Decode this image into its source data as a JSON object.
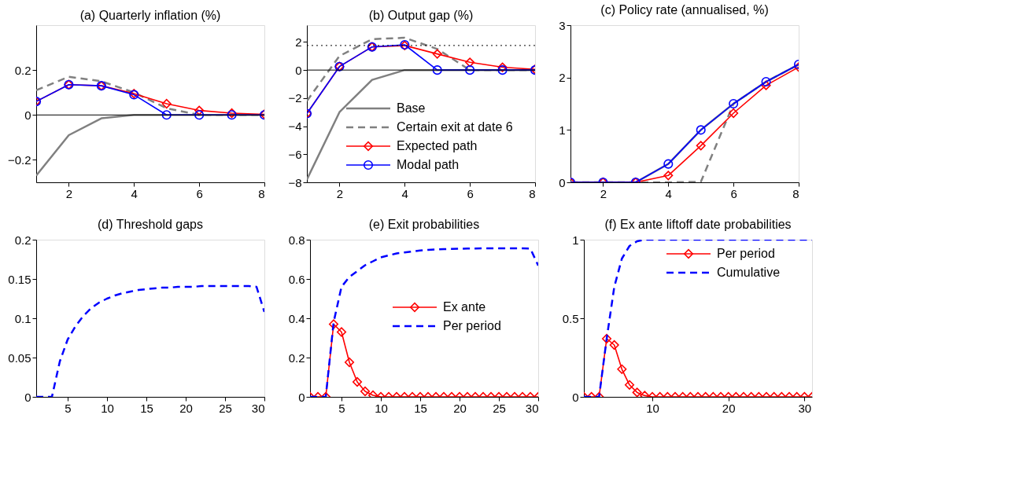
{
  "chart_data": [
    {
      "type": "line",
      "title": "(a) Quarterly inflation (%)",
      "x": [
        1,
        2,
        3,
        4,
        5,
        6,
        7,
        8
      ],
      "xlim": [
        1,
        8
      ],
      "xticks": [
        2,
        4,
        6,
        8
      ],
      "ylim": [
        -0.3,
        0.4
      ],
      "yticks": [
        {
          "value": -0.2,
          "label": "−0.2"
        },
        0,
        0.2
      ],
      "ref_lines": [
        {
          "axis": "y",
          "value": 0,
          "color": "#000000",
          "line_style": "solid"
        }
      ],
      "series": [
        {
          "color": "#808080",
          "line_style": "solid",
          "marker": "none",
          "values": [
            -0.27,
            -0.09,
            -0.015,
            0,
            0,
            0,
            0,
            0
          ]
        },
        {
          "color": "#808080",
          "line_style": "dashed",
          "marker": "none",
          "values": [
            0.11,
            0.17,
            0.15,
            0.1,
            0.03,
            0,
            0,
            0
          ]
        },
        {
          "color": "#ff0000",
          "line_style": "solid",
          "marker": "diamond",
          "values": [
            0.06,
            0.135,
            0.13,
            0.095,
            0.05,
            0.02,
            0.008,
            0.003
          ]
        },
        {
          "color": "#0000ff",
          "line_style": "solid",
          "marker": "circle",
          "values": [
            0.06,
            0.135,
            0.13,
            0.09,
            0,
            0,
            0,
            0
          ]
        }
      ]
    },
    {
      "type": "line",
      "title": "(b) Output gap (%)",
      "x": [
        1,
        2,
        3,
        4,
        5,
        6,
        7,
        8
      ],
      "xlim": [
        1,
        8
      ],
      "xticks": [
        2,
        4,
        6,
        8
      ],
      "ylim": [
        -8,
        3.2
      ],
      "yticks": [
        {
          "value": -8,
          "label": "−8"
        },
        {
          "value": -6,
          "label": "−6"
        },
        {
          "value": -4,
          "label": "−4"
        },
        {
          "value": -2,
          "label": "−2"
        },
        0,
        2
      ],
      "legend": "bottom right",
      "ref_lines": [
        {
          "axis": "y",
          "value": 0,
          "color": "#000000",
          "line_style": "solid"
        },
        {
          "axis": "y",
          "value": 1.75,
          "color": "#000000",
          "line_style": "dotted"
        }
      ],
      "series": [
        {
          "name": "Base",
          "color": "#808080",
          "line_style": "solid",
          "marker": "none",
          "values": [
            -7.8,
            -3,
            -0.7,
            0,
            0,
            0,
            0,
            0
          ]
        },
        {
          "name": "Certain exit at date 6",
          "color": "#808080",
          "line_style": "dashed",
          "marker": "none",
          "values": [
            -2.2,
            1.0,
            2.2,
            2.3,
            1.5,
            0,
            0,
            0
          ]
        },
        {
          "name": "Expected path",
          "color": "#ff0000",
          "line_style": "solid",
          "marker": "diamond",
          "values": [
            -3.1,
            0.25,
            1.65,
            1.75,
            1.15,
            0.55,
            0.2,
            0.05
          ]
        },
        {
          "name": "Modal path",
          "color": "#0000ff",
          "line_style": "solid",
          "marker": "circle",
          "values": [
            -3.1,
            0.25,
            1.65,
            1.8,
            0,
            0,
            0,
            0
          ]
        }
      ]
    },
    {
      "type": "line",
      "title": "(c) Policy rate (annualised, %)",
      "x": [
        1,
        2,
        3,
        4,
        5,
        6,
        7,
        8
      ],
      "xlim": [
        1,
        8
      ],
      "xticks": [
        2,
        4,
        6,
        8
      ],
      "ylim": [
        0,
        3
      ],
      "yticks": [
        0,
        1,
        2,
        3
      ],
      "series": [
        {
          "color": "#808080",
          "line_style": "solid",
          "marker": "none",
          "values": [
            0,
            0,
            0,
            0.35,
            1.0,
            1.5,
            1.92,
            2.25
          ]
        },
        {
          "color": "#808080",
          "line_style": "dashed",
          "marker": "none",
          "values": [
            0,
            0,
            0,
            0,
            0.01,
            1.5,
            1.92,
            2.25
          ]
        },
        {
          "color": "#ff0000",
          "line_style": "solid",
          "marker": "diamond",
          "values": [
            0,
            0,
            0,
            0.13,
            0.7,
            1.32,
            1.85,
            2.2
          ]
        },
        {
          "color": "#0000ff",
          "line_style": "solid",
          "marker": "circle",
          "values": [
            0,
            0,
            0,
            0.35,
            1.0,
            1.5,
            1.92,
            2.25
          ]
        }
      ]
    },
    {
      "type": "line",
      "title": "(d) Threshold gaps",
      "x": [
        1,
        2,
        3,
        4,
        5,
        6,
        7,
        8,
        9,
        10,
        11,
        12,
        13,
        14,
        15,
        16,
        17,
        18,
        19,
        20,
        21,
        22,
        23,
        24,
        25,
        26,
        27,
        28,
        29,
        30
      ],
      "xlim": [
        1,
        30
      ],
      "xticks": [
        5,
        10,
        15,
        20,
        25,
        30
      ],
      "ylim": [
        0,
        0.2
      ],
      "yticks": [
        0,
        0.05,
        0.1,
        0.15,
        0.2
      ],
      "series": [
        {
          "color": "#0000ff",
          "line_style": "dashed",
          "marker": "none",
          "values": [
            0,
            0,
            0,
            0.045,
            0.073,
            0.09,
            0.103,
            0.113,
            0.12,
            0.125,
            0.129,
            0.132,
            0.134,
            0.136,
            0.137,
            0.138,
            0.139,
            0.139,
            0.14,
            0.14,
            0.14,
            0.141,
            0.141,
            0.141,
            0.141,
            0.141,
            0.141,
            0.141,
            0.14,
            0.108
          ]
        }
      ]
    },
    {
      "type": "line",
      "title": "(e) Exit probabilities",
      "x": [
        1,
        2,
        3,
        4,
        5,
        6,
        7,
        8,
        9,
        10,
        11,
        12,
        13,
        14,
        15,
        16,
        17,
        18,
        19,
        20,
        21,
        22,
        23,
        24,
        25,
        26,
        27,
        28,
        29,
        30
      ],
      "xlim": [
        1,
        30
      ],
      "xticks": [
        5,
        10,
        15,
        20,
        25,
        30
      ],
      "ylim": [
        0,
        0.8
      ],
      "yticks": [
        0,
        0.2,
        0.4,
        0.6,
        0.8
      ],
      "legend": "right",
      "series": [
        {
          "name": "Ex ante",
          "color": "#ff0000",
          "line_style": "solid",
          "marker": "diamond",
          "values": [
            0,
            0,
            0,
            0.37,
            0.33,
            0.176,
            0.076,
            0.028,
            0.008,
            0,
            0,
            0,
            0,
            0,
            0,
            0,
            0,
            0,
            0,
            0,
            0,
            0,
            0,
            0,
            0,
            0,
            0,
            0,
            0,
            0
          ]
        },
        {
          "name": "Per period",
          "color": "#0000ff",
          "line_style": "dashed",
          "marker": "none",
          "values": [
            0,
            0,
            0,
            0.38,
            0.56,
            0.61,
            0.64,
            0.67,
            0.69,
            0.71,
            0.72,
            0.73,
            0.735,
            0.74,
            0.745,
            0.748,
            0.75,
            0.752,
            0.753,
            0.754,
            0.755,
            0.755,
            0.756,
            0.756,
            0.756,
            0.756,
            0.756,
            0.756,
            0.755,
            0.668
          ]
        }
      ]
    },
    {
      "type": "line",
      "title": "(f) Ex ante liftoff date probabilities",
      "x": [
        1,
        2,
        3,
        4,
        5,
        6,
        7,
        8,
        9,
        10,
        11,
        12,
        13,
        14,
        15,
        16,
        17,
        18,
        19,
        20,
        21,
        22,
        23,
        24,
        25,
        26,
        27,
        28,
        29,
        30,
        31
      ],
      "xlim": [
        1,
        31
      ],
      "xticks": [
        10,
        20,
        30
      ],
      "ylim": [
        0,
        1
      ],
      "yticks": [
        0,
        0.5,
        1
      ],
      "legend": "top right",
      "series": [
        {
          "name": "Per period",
          "color": "#ff0000",
          "line_style": "solid",
          "marker": "diamond",
          "values": [
            0,
            0,
            0,
            0.37,
            0.33,
            0.176,
            0.076,
            0.028,
            0.008,
            0,
            0,
            0,
            0,
            0,
            0,
            0,
            0,
            0,
            0,
            0,
            0,
            0,
            0,
            0,
            0,
            0,
            0,
            0,
            0,
            0,
            0
          ]
        },
        {
          "name": "Cumulative",
          "color": "#0000ff",
          "line_style": "dashed",
          "marker": "none",
          "values": [
            0,
            0,
            0,
            0.37,
            0.7,
            0.88,
            0.96,
            0.99,
            1,
            1,
            1,
            1,
            1,
            1,
            1,
            1,
            1,
            1,
            1,
            1,
            1,
            1,
            1,
            1,
            1,
            1,
            1,
            1,
            1,
            1,
            1
          ]
        }
      ]
    }
  ]
}
